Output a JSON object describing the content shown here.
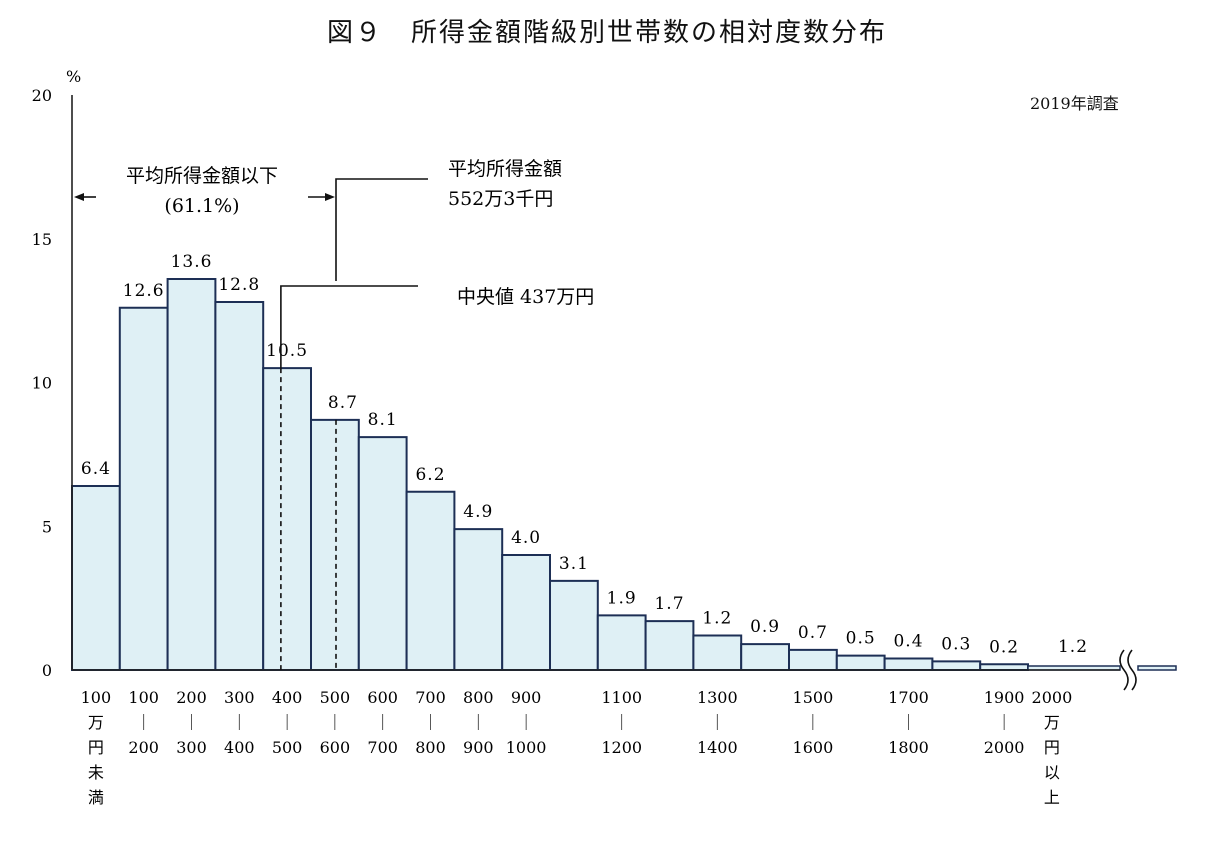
{
  "title": "図９　所得金額階級別世帯数の相対度数分布",
  "survey_note": "2019年調査",
  "chart_data": {
    "type": "bar",
    "y_unit": "%",
    "ylim": [
      0,
      20
    ],
    "yticks": [
      "0",
      "5",
      "10",
      "15",
      "20"
    ],
    "values": [
      6.4,
      12.6,
      13.6,
      12.8,
      10.5,
      8.7,
      8.1,
      6.2,
      4.9,
      4.0,
      3.1,
      1.9,
      1.7,
      1.2,
      0.9,
      0.7,
      0.5,
      0.4,
      0.3,
      0.2,
      1.2
    ],
    "value_labels": [
      "6.4",
      "12.6",
      "13.6",
      "12.8",
      "10.5",
      "8.7",
      "8.1",
      "6.2",
      "4.9",
      "4.0",
      "3.1",
      "1.9",
      "1.7",
      "1.2",
      "0.9",
      "0.7",
      "0.5",
      "0.4",
      "0.3",
      "0.2",
      "1.2"
    ],
    "x_labels": [
      [
        "100",
        "万",
        "円",
        "未",
        "満"
      ],
      [
        "100",
        "｜",
        "200"
      ],
      [
        "200",
        "｜",
        "300"
      ],
      [
        "300",
        "｜",
        "400"
      ],
      [
        "400",
        "｜",
        "500"
      ],
      [
        "500",
        "｜",
        "600"
      ],
      [
        "600",
        "｜",
        "700"
      ],
      [
        "700",
        "｜",
        "800"
      ],
      [
        "800",
        "｜",
        "900"
      ],
      [
        "900",
        "｜",
        "1000"
      ],
      [],
      [
        "1100",
        "｜",
        "1200"
      ],
      [],
      [
        "1300",
        "｜",
        "1400"
      ],
      [],
      [
        "1500",
        "｜",
        "1600"
      ],
      [],
      [
        "1700",
        "｜",
        "1800"
      ],
      [],
      [
        "1900",
        "｜",
        "2000"
      ],
      [
        "2000",
        "万",
        "円",
        "以",
        "上"
      ]
    ],
    "annotations": {
      "below_average_line1": "平均所得金額以下",
      "below_average_line2": "(61.1%)",
      "average_line1": "平均所得金額",
      "average_line2": "552万3千円",
      "median": "中央値 437万円"
    },
    "mean": 552.3,
    "median": 437,
    "grid": false
  }
}
